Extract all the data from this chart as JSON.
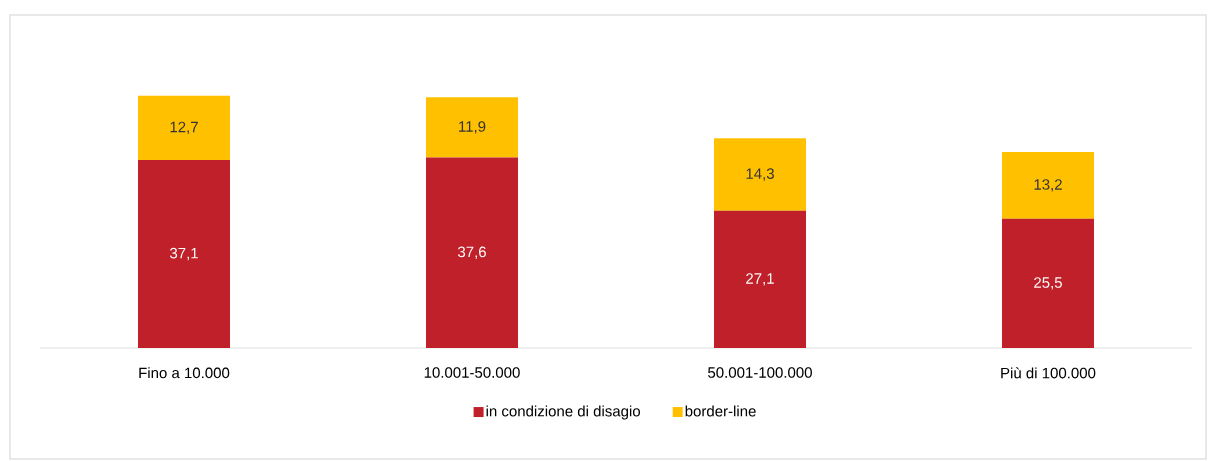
{
  "chart_data": {
    "type": "bar",
    "stacked": true,
    "legend": "bottom",
    "categories": [
      "Fino a 10.000",
      "10.001-50.000",
      "50.001-100.000",
      "Più di 100.000"
    ],
    "series": [
      {
        "name": "in condizione di disagio",
        "color": "#c0202a",
        "values": [
          37.1,
          37.6,
          27.1,
          25.5
        ],
        "value_labels": [
          "37,1",
          "37,6",
          "27,1",
          "25,5"
        ]
      },
      {
        "name": "border-line",
        "color": "#ffc000",
        "values": [
          12.7,
          11.9,
          14.3,
          13.2
        ],
        "value_labels": [
          "12,7",
          "11,9",
          "14,3",
          "13,2"
        ]
      }
    ]
  }
}
